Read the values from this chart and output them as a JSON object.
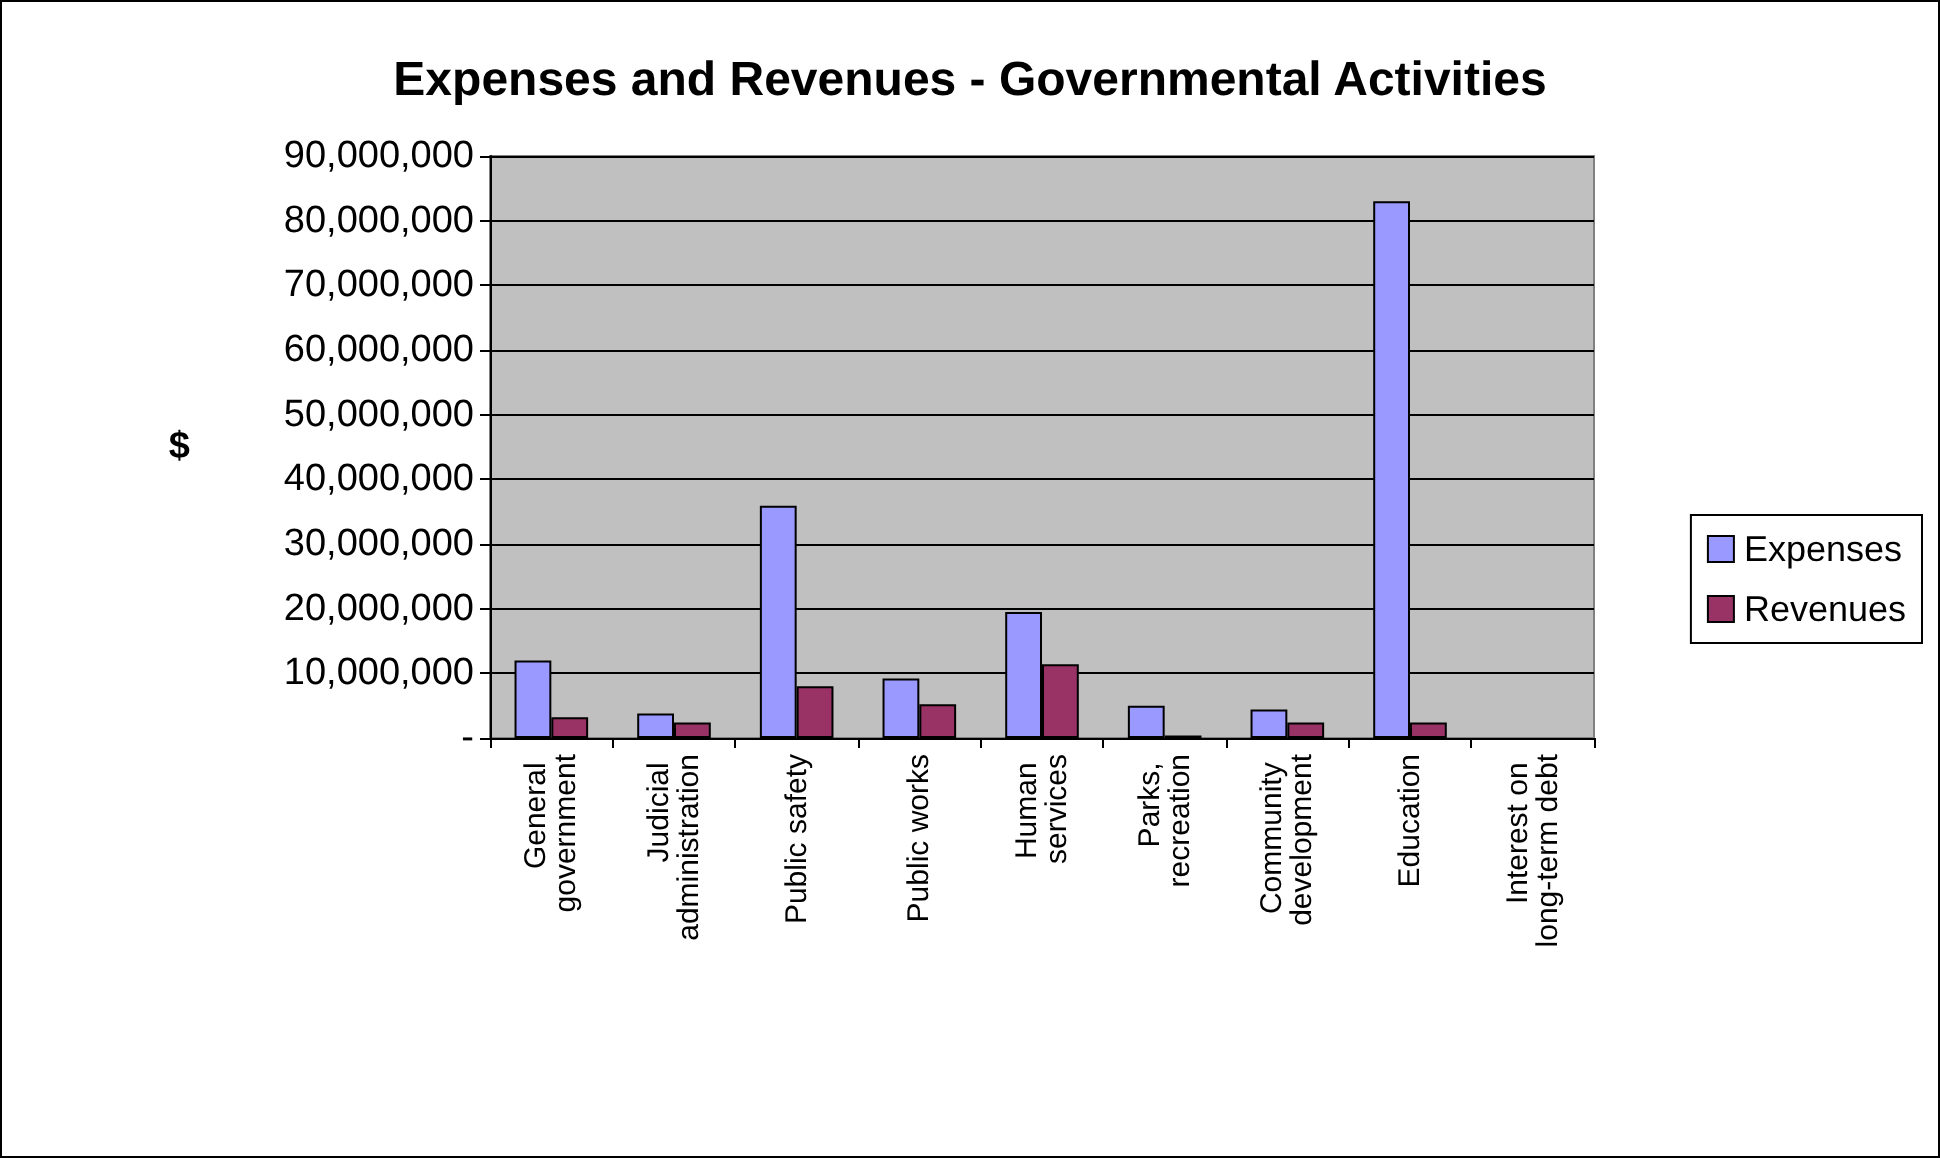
{
  "chart_data": {
    "type": "bar",
    "title": "Expenses and Revenues - Governmental Activities",
    "ylabel": "$",
    "categories": [
      "General government",
      "Judicial administration",
      "Public safety",
      "Public works",
      "Human services",
      "Parks, recreation",
      "Community development",
      "Education",
      "Interest on long-term debt"
    ],
    "series": [
      {
        "name": "Expenses",
        "color": "#9999ff",
        "values": [
          12000000,
          3800000,
          35900000,
          9200000,
          19500000,
          5000000,
          4400000,
          83000000,
          null
        ]
      },
      {
        "name": "Revenues",
        "color": "#993366",
        "values": [
          3200000,
          2400000,
          8000000,
          5200000,
          11400000,
          400000,
          2400000,
          2400000,
          null
        ]
      }
    ],
    "ylim": [
      0,
      90000000
    ],
    "yticks": [
      {
        "value": 0,
        "label": "-"
      },
      {
        "value": 10000000,
        "label": "10,000,000"
      },
      {
        "value": 20000000,
        "label": "20,000,000"
      },
      {
        "value": 30000000,
        "label": "30,000,000"
      },
      {
        "value": 40000000,
        "label": "40,000,000"
      },
      {
        "value": 50000000,
        "label": "50,000,000"
      },
      {
        "value": 60000000,
        "label": "60,000,000"
      },
      {
        "value": 70000000,
        "label": "70,000,000"
      },
      {
        "value": 80000000,
        "label": "80,000,000"
      },
      {
        "value": 90000000,
        "label": "90,000,000"
      }
    ],
    "grid": "y",
    "legend": "right"
  }
}
